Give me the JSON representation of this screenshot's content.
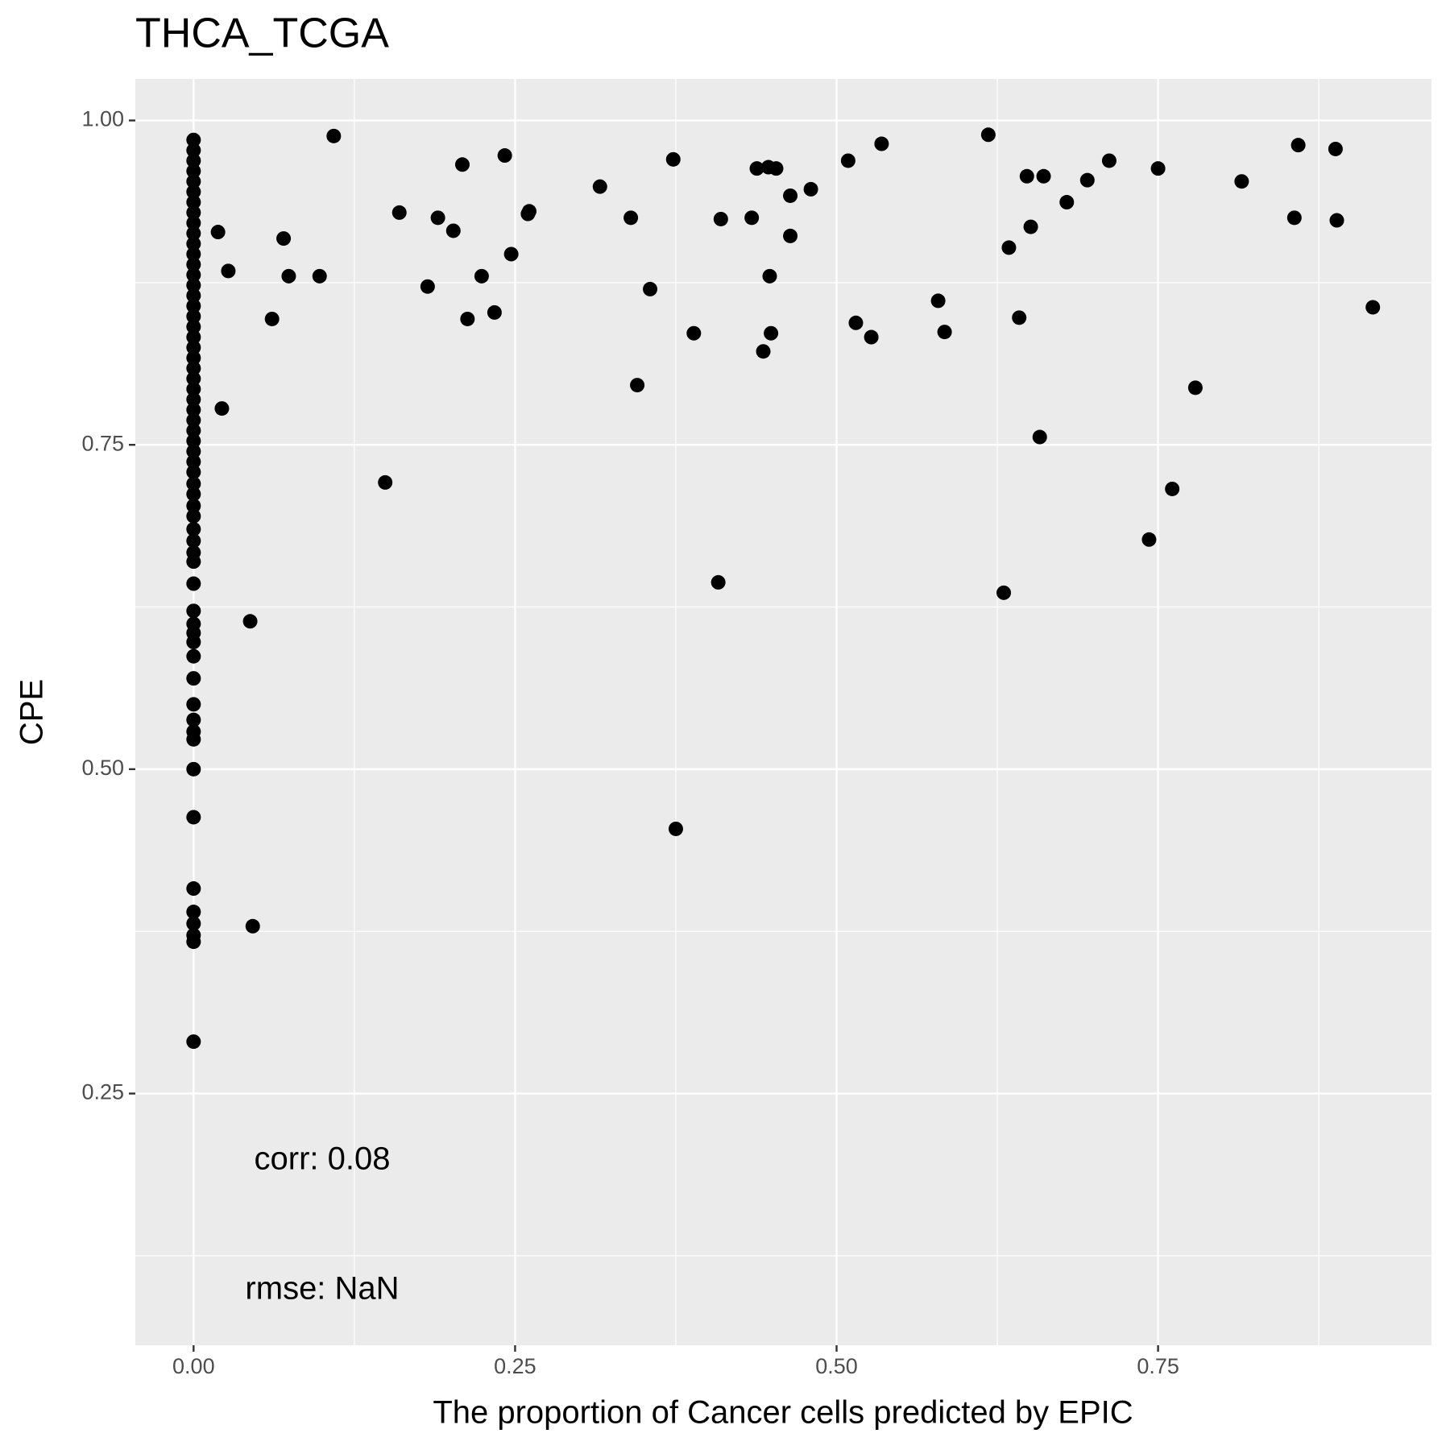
{
  "chart_data": {
    "type": "scatter",
    "title": "THCA_TCGA",
    "x_label": "The proportion of Cancer cells predicted by EPIC",
    "y_label": "CPE",
    "annotations": [
      "corr: 0.08",
      "rmse: NaN"
    ],
    "color": "#000000",
    "grid": true,
    "xlim": [
      -0.0453,
      0.9626
    ],
    "ylim": [
      0.056,
      1.032
    ],
    "xticks": [
      {
        "value": 0,
        "label": "0.00"
      },
      {
        "value": 0.25,
        "label": "0.25"
      },
      {
        "value": 0.5,
        "label": "0.50"
      },
      {
        "value": 0.75,
        "label": "0.75"
      }
    ],
    "yticks": [
      {
        "value": 0.25,
        "label": "0.25"
      },
      {
        "value": 0.5,
        "label": "0.50"
      },
      {
        "value": 0.75,
        "label": "0.75"
      },
      {
        "value": 1,
        "label": "1.00"
      }
    ],
    "x": [
      0.109,
      0.019,
      0.027,
      0.022,
      0.061,
      0.07,
      0.074,
      0.098,
      0.044,
      0.046,
      0.149,
      0.16,
      0.182,
      0.19,
      0.202,
      0.209,
      0.213,
      0.224,
      0.234,
      0.242,
      0.247,
      0.26,
      0.261,
      0.316,
      0.34,
      0.345,
      0.355,
      0.373,
      0.375,
      0.389,
      0.408,
      0.41,
      0.434,
      0.438,
      0.443,
      0.447,
      0.453,
      0.448,
      0.449,
      0.464,
      0.464,
      0.48,
      0.509,
      0.515,
      0.527,
      0.535,
      0.579,
      0.584,
      0.618,
      0.63,
      0.634,
      0.642,
      0.648,
      0.651,
      0.658,
      0.661,
      0.679,
      0.695,
      0.712,
      0.743,
      0.75,
      0.761,
      0.779,
      0.815,
      0.856,
      0.859,
      0.888,
      0.889,
      0.917,
      0,
      0,
      0,
      0,
      0,
      0,
      0,
      0,
      0,
      0,
      0,
      0,
      0,
      0,
      0,
      0,
      0,
      0,
      0,
      0,
      0,
      0,
      0,
      0,
      0,
      0,
      0,
      0,
      0,
      0,
      0,
      0,
      0,
      0,
      0,
      0,
      0,
      0,
      0,
      0,
      0,
      0,
      0,
      0,
      0,
      0,
      0,
      0,
      0,
      0,
      0,
      0,
      0,
      0,
      0,
      0,
      0,
      0,
      0,
      0
    ],
    "values": [
      0.988,
      0.914,
      0.884,
      0.778,
      0.847,
      0.909,
      0.88,
      0.88,
      0.614,
      0.379,
      0.721,
      0.929,
      0.872,
      0.925,
      0.915,
      0.966,
      0.847,
      0.88,
      0.852,
      0.973,
      0.897,
      0.928,
      0.93,
      0.949,
      0.925,
      0.796,
      0.87,
      0.97,
      0.454,
      0.836,
      0.644,
      0.924,
      0.925,
      0.963,
      0.822,
      0.964,
      0.963,
      0.88,
      0.836,
      0.911,
      0.942,
      0.947,
      0.969,
      0.844,
      0.833,
      0.982,
      0.861,
      0.837,
      0.989,
      0.636,
      0.902,
      0.848,
      0.957,
      0.918,
      0.756,
      0.957,
      0.937,
      0.954,
      0.969,
      0.677,
      0.963,
      0.716,
      0.794,
      0.953,
      0.925,
      0.981,
      0.978,
      0.923,
      0.856,
      0.985,
      0.977,
      0.969,
      0.961,
      0.953,
      0.945,
      0.937,
      0.929,
      0.921,
      0.913,
      0.905,
      0.897,
      0.889,
      0.881,
      0.873,
      0.865,
      0.857,
      0.849,
      0.841,
      0.833,
      0.825,
      0.817,
      0.809,
      0.801,
      0.793,
      0.785,
      0.777,
      0.769,
      0.761,
      0.753,
      0.745,
      0.737,
      0.729,
      0.72,
      0.712,
      0.703,
      0.695,
      0.685,
      0.676,
      0.667,
      0.66,
      0.643,
      0.622,
      0.612,
      0.605,
      0.598,
      0.587,
      0.57,
      0.55,
      0.538,
      0.529,
      0.523,
      0.5,
      0.463,
      0.408,
      0.39,
      0.381,
      0.372,
      0.367,
      0.29
    ]
  }
}
